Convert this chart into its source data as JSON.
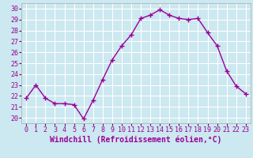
{
  "x": [
    0,
    1,
    2,
    3,
    4,
    5,
    6,
    7,
    8,
    9,
    10,
    11,
    12,
    13,
    14,
    15,
    16,
    17,
    18,
    19,
    20,
    21,
    22,
    23
  ],
  "y": [
    21.8,
    23.0,
    21.8,
    21.3,
    21.3,
    21.2,
    19.9,
    21.6,
    23.5,
    25.3,
    26.6,
    27.6,
    29.1,
    29.4,
    29.9,
    29.4,
    29.1,
    29.0,
    29.1,
    27.8,
    26.6,
    24.3,
    22.9,
    22.2
  ],
  "line_color": "#990099",
  "marker": "+",
  "marker_size": 4,
  "xlabel": "Windchill (Refroidissement éolien,°C)",
  "xlabel_fontsize": 7,
  "xlim": [
    -0.5,
    23.5
  ],
  "ylim": [
    19.5,
    30.5
  ],
  "yticks": [
    20,
    21,
    22,
    23,
    24,
    25,
    26,
    27,
    28,
    29,
    30
  ],
  "xticks": [
    0,
    1,
    2,
    3,
    4,
    5,
    6,
    7,
    8,
    9,
    10,
    11,
    12,
    13,
    14,
    15,
    16,
    17,
    18,
    19,
    20,
    21,
    22,
    23
  ],
  "background_color": "#cce8f0",
  "grid_color": "#ffffff",
  "tick_fontsize": 6,
  "line_width": 1.0,
  "spine_color": "#aaaaaa"
}
